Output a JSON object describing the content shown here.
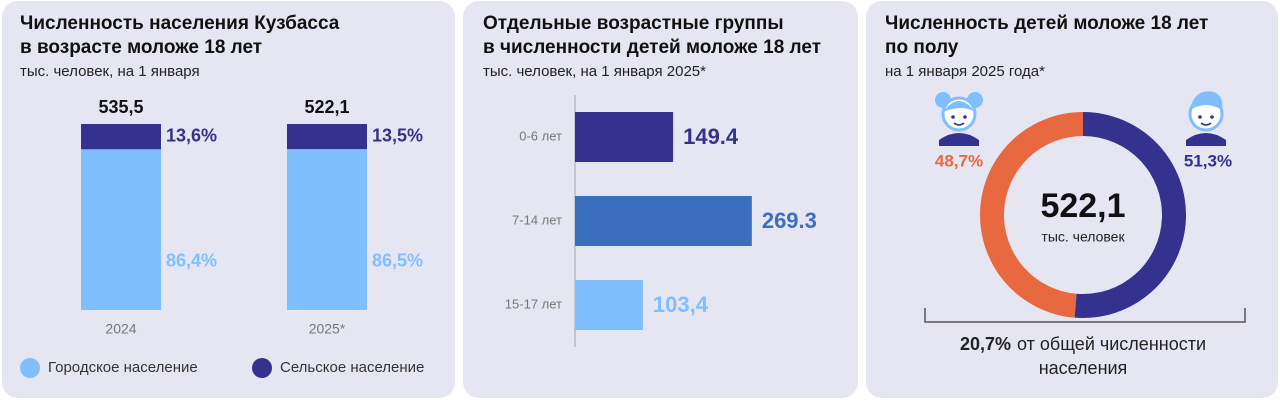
{
  "chart_data": [
    {
      "type": "stacked100",
      "title": [
        "Численность населения Кузбасса",
        "в возрасте моложе 18 лет"
      ],
      "subtitle": "тыс. человек, на 1 января",
      "categories": [
        "2024",
        "2025*"
      ],
      "ylim": [
        0,
        100
      ],
      "totals": [
        "535,5",
        "522,1"
      ],
      "series": [
        {
          "name": "Городское население",
          "color": "#7fbfff",
          "values": [
            86.4,
            86.5
          ],
          "value_labels": [
            "86,4%",
            "86,5%"
          ]
        },
        {
          "name": "Сельское население",
          "color": "#34318f",
          "values": [
            13.6,
            13.5
          ],
          "value_labels": [
            "13,6%",
            "13,5%"
          ]
        }
      ]
    },
    {
      "type": "hbar",
      "title": [
        "Отдельные возрастные группы",
        "в численности детей моложе 18 лет"
      ],
      "subtitle": "тыс. человек, на 1 января 2025*",
      "categories": [
        "0-6 лет",
        "7-14 лет",
        "15-17 лет"
      ],
      "values": [
        149.4,
        269.3,
        103.4
      ],
      "value_labels": [
        "149.4",
        "269.3",
        "103,4"
      ],
      "colors": [
        "#34318f",
        "#3a6fc0",
        "#7fbfff"
      ],
      "xlim": [
        0,
        300
      ]
    },
    {
      "type": "donut",
      "title": [
        "Численность детей моложе 18 лет",
        "по полу"
      ],
      "subtitle": "на 1 января 2025 года*",
      "values": [
        48.7,
        51.3
      ],
      "value_labels": [
        "48,7%",
        "51,3%"
      ],
      "colors": [
        "#e8683f",
        "#34318f"
      ],
      "center_label": "522,1",
      "center_unit": "тыс. человек",
      "note": {
        "label": "20,7%",
        "lines": [
          "от общей численности",
          "населения"
        ]
      }
    }
  ]
}
